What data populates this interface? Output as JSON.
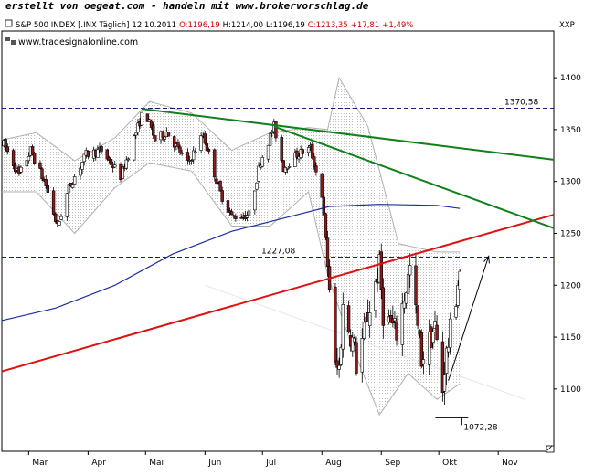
{
  "banner": "erstellt von oegeat.com - handeln mit www.brokervorschlag.de",
  "header": {
    "instrument": "S&P 500 INDEX [.INX  Täglich]",
    "date": "12.10.2011",
    "open": "O:1196,19",
    "high": "H:1214,00",
    "low": "L:1196,19",
    "close": "C:1213,35",
    "change": "+17,81",
    "change_pct": "+1,49%",
    "right_tag": "XXP"
  },
  "watermark": "www.tradesignalonline.com",
  "colors": {
    "up": "#ffffff",
    "down": "#8b1a1a",
    "ma200": "#1c2fa0",
    "red_trend": "#e01010",
    "green_trend": "#10801a",
    "bands": "#b0b0b0",
    "level_line": "#1c1c7c"
  },
  "chart_data": {
    "type": "candlestick",
    "title": "S&P 500 INDEX [.INX Täglich]",
    "ylim": [
      1040,
      1445
    ],
    "y_ticks": [
      1100,
      1150,
      1200,
      1250,
      1300,
      1350,
      1400
    ],
    "x_range": [
      "2011-02-15",
      "2011-11-30"
    ],
    "months": [
      {
        "label": "Mär",
        "date": "2011-03-01"
      },
      {
        "label": "Apr",
        "date": "2011-04-01"
      },
      {
        "label": "Mai",
        "date": "2011-05-01"
      },
      {
        "label": "Jun",
        "date": "2011-06-01"
      },
      {
        "label": "Jul",
        "date": "2011-07-01"
      },
      {
        "label": "Aug",
        "date": "2011-08-01"
      },
      {
        "label": "Sep",
        "date": "2011-09-01"
      },
      {
        "label": "Okt",
        "date": "2011-10-01"
      },
      {
        "label": "Nov",
        "date": "2011-11-01"
      }
    ],
    "close_path": [
      [
        "2011-02-16",
        1336
      ],
      [
        "2011-02-24",
        1306
      ],
      [
        "2011-03-02",
        1330
      ],
      [
        "2011-03-10",
        1296
      ],
      [
        "2011-03-16",
        1256
      ],
      [
        "2011-03-22",
        1294
      ],
      [
        "2011-03-31",
        1326
      ],
      [
        "2011-04-08",
        1330
      ],
      [
        "2011-04-18",
        1305
      ],
      [
        "2011-04-29",
        1363
      ],
      [
        "2011-05-02",
        1361
      ],
      [
        "2011-05-06",
        1340
      ],
      [
        "2011-05-12",
        1348
      ],
      [
        "2011-05-23",
        1317
      ],
      [
        "2011-05-31",
        1345
      ],
      [
        "2011-06-09",
        1289
      ],
      [
        "2011-06-15",
        1266
      ],
      [
        "2011-06-24",
        1268
      ],
      [
        "2011-06-30",
        1320
      ],
      [
        "2011-07-07",
        1353
      ],
      [
        "2011-07-12",
        1313
      ],
      [
        "2011-07-19",
        1326
      ],
      [
        "2011-07-26",
        1332
      ],
      [
        "2011-08-01",
        1287
      ],
      [
        "2011-08-05",
        1199
      ],
      [
        "2011-08-08",
        1119
      ],
      [
        "2011-08-10",
        1120
      ],
      [
        "2011-08-12",
        1178
      ],
      [
        "2011-08-18",
        1140
      ],
      [
        "2011-08-19",
        1123
      ],
      [
        "2011-08-31",
        1218
      ],
      [
        "2011-09-02",
        1173
      ],
      [
        "2011-09-09",
        1154
      ],
      [
        "2011-09-16",
        1216
      ],
      [
        "2011-09-22",
        1129
      ],
      [
        "2011-09-29",
        1160
      ],
      [
        "2011-10-03",
        1099
      ],
      [
        "2011-10-04",
        1123
      ],
      [
        "2011-10-07",
        1155
      ],
      [
        "2011-10-12",
        1213
      ]
    ],
    "ma200": [
      [
        "2011-02-15",
        1166
      ],
      [
        "2011-03-15",
        1178
      ],
      [
        "2011-04-15",
        1200
      ],
      [
        "2011-05-15",
        1230
      ],
      [
        "2011-06-15",
        1252
      ],
      [
        "2011-07-15",
        1266
      ],
      [
        "2011-08-05",
        1276
      ],
      [
        "2011-08-31",
        1278
      ],
      [
        "2011-09-30",
        1277
      ],
      [
        "2011-10-12",
        1274
      ]
    ],
    "bollinger_upper": [
      [
        "2011-02-15",
        1340
      ],
      [
        "2011-03-05",
        1347
      ],
      [
        "2011-03-25",
        1320
      ],
      [
        "2011-04-15",
        1342
      ],
      [
        "2011-05-03",
        1377
      ],
      [
        "2011-05-25",
        1366
      ],
      [
        "2011-06-15",
        1330
      ],
      [
        "2011-07-05",
        1347
      ],
      [
        "2011-07-25",
        1352
      ],
      [
        "2011-08-04",
        1350
      ],
      [
        "2011-08-10",
        1400
      ],
      [
        "2011-08-25",
        1353
      ],
      [
        "2011-09-10",
        1240
      ],
      [
        "2011-09-30",
        1232
      ],
      [
        "2011-10-12",
        1232
      ]
    ],
    "bollinger_lower": [
      [
        "2011-02-15",
        1290
      ],
      [
        "2011-03-05",
        1290
      ],
      [
        "2011-03-25",
        1250
      ],
      [
        "2011-04-15",
        1294
      ],
      [
        "2011-05-03",
        1318
      ],
      [
        "2011-05-25",
        1310
      ],
      [
        "2011-06-15",
        1257
      ],
      [
        "2011-07-05",
        1257
      ],
      [
        "2011-07-25",
        1290
      ],
      [
        "2011-08-04",
        1210
      ],
      [
        "2011-08-15",
        1150
      ],
      [
        "2011-08-31",
        1075
      ],
      [
        "2011-09-15",
        1115
      ],
      [
        "2011-09-30",
        1090
      ],
      [
        "2011-10-12",
        1105
      ]
    ],
    "red_trendline": [
      [
        "2011-02-15",
        1117
      ],
      [
        "2011-11-30",
        1268
      ]
    ],
    "green_trendline_1": [
      [
        "2011-04-29",
        1370
      ],
      [
        "2011-11-30",
        1321
      ]
    ],
    "green_trendline_2": [
      [
        "2011-07-07",
        1353
      ],
      [
        "2011-11-30",
        1255
      ]
    ],
    "black_arrow": [
      [
        "2011-10-06",
        1108
      ],
      [
        "2011-10-27",
        1228
      ]
    ],
    "levels": [
      {
        "value": 1370.58,
        "label": "1370,58"
      },
      {
        "value": 1227.08,
        "label": "1227,08"
      },
      {
        "value": 1072.28,
        "label": "1072,28"
      }
    ]
  }
}
